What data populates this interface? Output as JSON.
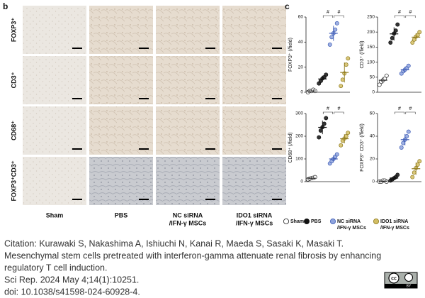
{
  "panel_b": {
    "label": "b",
    "row_labels": [
      "FOXP3⁺",
      "CD3⁺",
      "CD68⁺",
      "FOXP3⁺CD3⁺"
    ],
    "column_labels": [
      [
        "Sham"
      ],
      [
        "PBS"
      ],
      [
        "NC siRNA",
        "/IFN-γ MSCs"
      ],
      [
        "IDO1 siRNA",
        "/IFN-γ MSCs"
      ]
    ]
  },
  "panel_c": {
    "label": "c"
  },
  "legend": {
    "items": [
      {
        "label": [
          "Sham"
        ],
        "color": "#ffffff",
        "stroke": "#222222"
      },
      {
        "label": [
          "PBS"
        ],
        "color": "#111111",
        "stroke": "#111111"
      },
      {
        "label": [
          "NC siRNA",
          "/IFN-γ MSCs"
        ],
        "color": "#8ea3dd",
        "stroke": "#3d5bb5"
      },
      {
        "label": [
          "IDO1 siRNA",
          "/IFN-γ MSCs"
        ],
        "color": "#d2bd63",
        "stroke": "#8f7a1e"
      }
    ]
  },
  "chart_data": [
    {
      "type": "scatter",
      "ylabel": "FOXP3⁺ (/field)",
      "ylim": [
        0,
        60
      ],
      "yticks": [
        0,
        20,
        40,
        60
      ],
      "series": [
        {
          "values": [
            0,
            1,
            1,
            2,
            1
          ],
          "mean": 1,
          "sd": 0.5
        },
        {
          "values": [
            7,
            9,
            11,
            12,
            14
          ],
          "mean": 10.6,
          "sd": 2.6
        },
        {
          "values": [
            38,
            44,
            47,
            50,
            55
          ],
          "mean": 47,
          "sd": 6
        },
        {
          "values": [
            5,
            10,
            15,
            22,
            27
          ],
          "mean": 15.8,
          "sd": 8
        }
      ],
      "significance": [
        {
          "label": "#",
          "groups": [
            1,
            2
          ]
        },
        {
          "label": "#",
          "groups": [
            2,
            3
          ]
        }
      ]
    },
    {
      "type": "scatter",
      "ylabel": "CD3⁺ (/field)",
      "ylim": [
        0,
        250
      ],
      "yticks": [
        0,
        50,
        100,
        150,
        200,
        250
      ],
      "series": [
        {
          "values": [
            25,
            35,
            40,
            45,
            55
          ],
          "mean": 40,
          "sd": 10
        },
        {
          "values": [
            165,
            180,
            195,
            205,
            225
          ],
          "mean": 194,
          "sd": 22
        },
        {
          "values": [
            62,
            70,
            75,
            80,
            88
          ],
          "mean": 75,
          "sd": 10
        },
        {
          "values": [
            165,
            175,
            185,
            190,
            200
          ],
          "mean": 183,
          "sd": 13
        }
      ],
      "significance": [
        {
          "label": "#",
          "groups": [
            1,
            2
          ]
        },
        {
          "label": "#",
          "groups": [
            2,
            3
          ]
        }
      ]
    },
    {
      "type": "scatter",
      "ylabel": "CD68⁺ (/field)",
      "ylim": [
        0,
        300
      ],
      "yticks": [
        0,
        100,
        200,
        300
      ],
      "series": [
        {
          "values": [
            10,
            13,
            15,
            17,
            20
          ],
          "mean": 15,
          "sd": 4
        },
        {
          "values": [
            195,
            225,
            240,
            255,
            280
          ],
          "mean": 239,
          "sd": 30
        },
        {
          "values": [
            80,
            90,
            100,
            110,
            120
          ],
          "mean": 100,
          "sd": 15
        },
        {
          "values": [
            160,
            180,
            190,
            200,
            215
          ],
          "mean": 189,
          "sd": 20
        }
      ],
      "significance": [
        {
          "label": "#",
          "groups": [
            1,
            2
          ]
        },
        {
          "label": "#",
          "groups": [
            2,
            3
          ]
        }
      ]
    },
    {
      "type": "scatter",
      "ylabel": "FOXP3⁺ CD3⁺ (/field)",
      "ylim": [
        0,
        60
      ],
      "yticks": [
        0,
        20,
        40,
        60
      ],
      "series": [
        {
          "values": [
            0,
            0,
            1,
            1,
            0
          ],
          "mean": 0.4,
          "sd": 0.5
        },
        {
          "values": [
            1,
            2,
            3,
            4,
            6
          ],
          "mean": 3.2,
          "sd": 1.9
        },
        {
          "values": [
            30,
            34,
            37,
            40,
            44
          ],
          "mean": 37,
          "sd": 5
        },
        {
          "values": [
            4,
            8,
            12,
            15,
            18
          ],
          "mean": 11.4,
          "sd": 5.4
        }
      ],
      "significance": [
        {
          "label": "#",
          "groups": [
            1,
            2
          ]
        },
        {
          "label": "#",
          "groups": [
            2,
            3
          ]
        }
      ]
    }
  ],
  "citation": [
    "Citation: Kurawaki S, Nakashima A, Ishiuchi N, Kanai R, Maeda S, Sasaki K, Masaki T.",
    "Mesenchymal stem cells pretreated with interferon-gamma attenuate renal fibrosis by enhancing",
    "regulatory T cell induction.",
    "Sci Rep. 2024 May 4;14(1):10251.",
    "doi: 10.1038/s41598-024-60928-4."
  ],
  "license": {
    "icon": "cc",
    "text": "BY"
  }
}
